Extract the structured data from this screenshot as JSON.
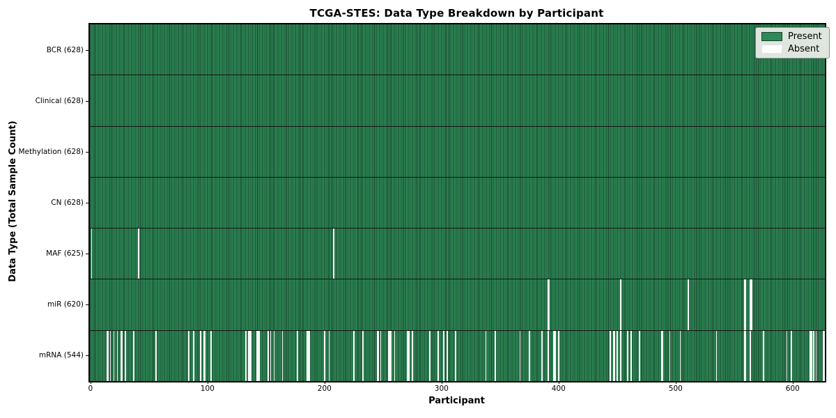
{
  "chart_data": {
    "type": "heatmap",
    "title": "TCGA-STES: Data Type Breakdown by Participant",
    "xlabel": "Participant",
    "ylabel": "Data Type (Total Sample Count)",
    "x_ticks": [
      0,
      100,
      200,
      300,
      400,
      500,
      600
    ],
    "x_range": [
      -0.5,
      627.5
    ],
    "n_participants": 628,
    "grid": false,
    "legend_position": "upper right",
    "colors": {
      "present": "#2e8b57",
      "present_edge": "#17412b",
      "absent": "#f8f9f8",
      "row_divider": "#141414",
      "legend_bg": "#dfe5df"
    },
    "legend": [
      {
        "label": "Present",
        "color": "#2e8b57"
      },
      {
        "label": "Absent",
        "color": "#ffffff"
      }
    ],
    "rows": [
      {
        "label": "BCR (628)",
        "data_type": "BCR",
        "present_count": 628,
        "absent_participants": []
      },
      {
        "label": "Clinical (628)",
        "data_type": "Clinical",
        "present_count": 628,
        "absent_participants": []
      },
      {
        "label": "Methylation (628)",
        "data_type": "Methylation",
        "present_count": 628,
        "absent_participants": []
      },
      {
        "label": "CN (628)",
        "data_type": "CN",
        "present_count": 628,
        "absent_participants": []
      },
      {
        "label": "MAF (625)",
        "data_type": "MAF",
        "present_count": 625,
        "absent_participants": [
          1,
          41,
          208
        ]
      },
      {
        "label": "miR (620)",
        "data_type": "miR",
        "present_count": 620,
        "absent_participants": [
          391,
          392,
          453,
          511,
          559,
          560,
          564,
          565
        ]
      },
      {
        "label": "mRNA (544)",
        "data_type": "mRNA",
        "present_count": 544,
        "absent_participants": [
          14,
          15,
          17,
          20,
          23,
          26,
          27,
          30,
          37,
          56,
          84,
          88,
          94,
          97,
          98,
          103,
          133,
          135,
          136,
          137,
          142,
          143,
          144,
          152,
          154,
          157,
          164,
          177,
          185,
          186,
          187,
          200,
          204,
          225,
          233,
          245,
          246,
          248,
          255,
          256,
          257,
          260,
          271,
          272,
          275,
          290,
          297,
          302,
          305,
          312,
          338,
          346,
          367,
          375,
          386,
          391,
          396,
          397,
          400,
          444,
          447,
          448,
          450,
          453,
          459,
          462,
          469,
          488,
          489,
          495,
          504,
          535,
          559,
          560,
          564,
          575,
          595,
          599,
          615,
          616,
          618,
          620,
          626,
          627
        ]
      }
    ]
  }
}
